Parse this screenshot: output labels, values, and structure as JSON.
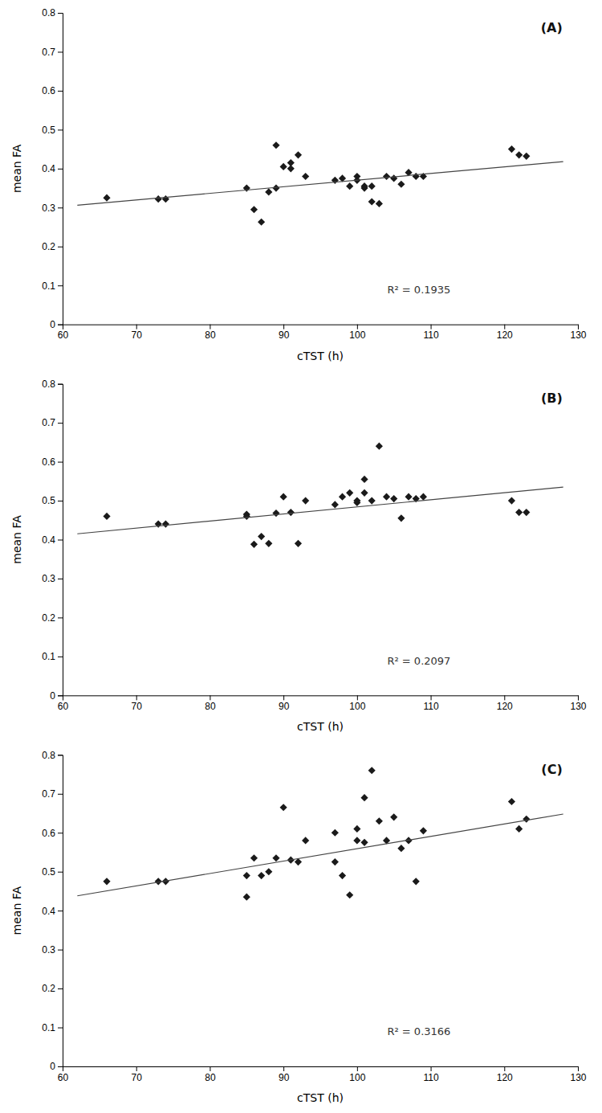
{
  "chart_data": [
    {
      "type": "scatter",
      "xlabel": "cTST (h)",
      "ylabel": "mean FA",
      "annotations": [
        "(A)",
        "R² = 0.1935"
      ],
      "xlim": [
        60,
        130
      ],
      "ylim": [
        0,
        0.8
      ],
      "xticks": [
        60,
        70,
        80,
        90,
        100,
        110,
        120,
        130
      ],
      "yticks": [
        0,
        0.1,
        0.2,
        0.3,
        0.4,
        0.5,
        0.6,
        0.7,
        0.8
      ],
      "grid": false,
      "series": [
        {
          "type": "scatter",
          "marker": "diamond",
          "color": "#1a1a1a",
          "x": [
            66,
            73,
            74,
            85,
            86,
            87,
            88,
            89,
            89,
            90,
            91,
            91,
            92,
            93,
            97,
            98,
            99,
            100,
            100,
            101,
            101,
            102,
            102,
            103,
            104,
            105,
            106,
            107,
            108,
            109,
            121,
            122,
            123
          ],
          "values": [
            0.325,
            0.322,
            0.322,
            0.35,
            0.295,
            0.263,
            0.34,
            0.46,
            0.35,
            0.405,
            0.415,
            0.4,
            0.435,
            0.38,
            0.37,
            0.375,
            0.355,
            0.38,
            0.37,
            0.35,
            0.355,
            0.355,
            0.315,
            0.31,
            0.38,
            0.375,
            0.36,
            0.39,
            0.38,
            0.38,
            0.45,
            0.435,
            0.432
          ]
        },
        {
          "type": "line",
          "line_style": "solid",
          "color": "#444444",
          "x": [
            62,
            128
          ],
          "values": [
            0.306,
            0.418
          ]
        }
      ]
    },
    {
      "type": "scatter",
      "xlabel": "cTST (h)",
      "ylabel": "mean FA",
      "annotations": [
        "(B)",
        "R² = 0.2097"
      ],
      "xlim": [
        60,
        130
      ],
      "ylim": [
        0,
        0.8
      ],
      "xticks": [
        60,
        70,
        80,
        90,
        100,
        110,
        120,
        130
      ],
      "yticks": [
        0,
        0.1,
        0.2,
        0.3,
        0.4,
        0.5,
        0.6,
        0.7,
        0.8
      ],
      "grid": false,
      "series": [
        {
          "type": "scatter",
          "marker": "diamond",
          "color": "#1a1a1a",
          "x": [
            66,
            73,
            74,
            85,
            85,
            86,
            87,
            88,
            89,
            90,
            91,
            92,
            93,
            97,
            98,
            99,
            100,
            100,
            101,
            101,
            102,
            103,
            104,
            105,
            106,
            107,
            108,
            109,
            121,
            122,
            123
          ],
          "values": [
            0.46,
            0.44,
            0.44,
            0.46,
            0.465,
            0.388,
            0.408,
            0.39,
            0.468,
            0.51,
            0.47,
            0.39,
            0.5,
            0.49,
            0.51,
            0.52,
            0.495,
            0.5,
            0.52,
            0.555,
            0.5,
            0.64,
            0.51,
            0.505,
            0.455,
            0.51,
            0.505,
            0.51,
            0.5,
            0.47,
            0.47
          ]
        },
        {
          "type": "line",
          "line_style": "solid",
          "color": "#444444",
          "x": [
            62,
            128
          ],
          "values": [
            0.415,
            0.535
          ]
        }
      ]
    },
    {
      "type": "scatter",
      "xlabel": "cTST (h)",
      "ylabel": "mean FA",
      "annotations": [
        "(C)",
        "R² = 0.3166"
      ],
      "xlim": [
        60,
        130
      ],
      "ylim": [
        0,
        0.8
      ],
      "xticks": [
        60,
        70,
        80,
        90,
        100,
        110,
        120,
        130
      ],
      "yticks": [
        0,
        0.1,
        0.2,
        0.3,
        0.4,
        0.5,
        0.6,
        0.7,
        0.8
      ],
      "grid": false,
      "series": [
        {
          "type": "scatter",
          "marker": "diamond",
          "color": "#1a1a1a",
          "x": [
            66,
            73,
            74,
            85,
            85,
            86,
            87,
            88,
            89,
            90,
            91,
            92,
            93,
            97,
            97,
            98,
            99,
            100,
            100,
            101,
            101,
            102,
            103,
            104,
            105,
            106,
            107,
            108,
            109,
            121,
            122,
            123
          ],
          "values": [
            0.475,
            0.475,
            0.475,
            0.49,
            0.435,
            0.535,
            0.49,
            0.5,
            0.535,
            0.665,
            0.53,
            0.525,
            0.58,
            0.6,
            0.525,
            0.49,
            0.44,
            0.61,
            0.58,
            0.575,
            0.69,
            0.76,
            0.63,
            0.58,
            0.64,
            0.56,
            0.58,
            0.475,
            0.605,
            0.68,
            0.61,
            0.635
          ]
        },
        {
          "type": "line",
          "line_style": "solid",
          "color": "#444444",
          "x": [
            62,
            128
          ],
          "values": [
            0.438,
            0.648
          ]
        }
      ]
    }
  ]
}
